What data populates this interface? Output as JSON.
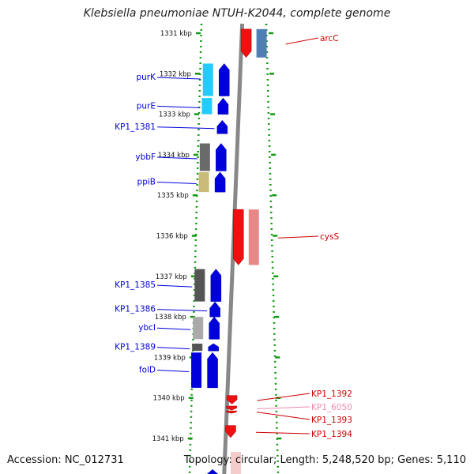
{
  "title": "Klebsiella pneumoniae NTUH-K2044, complete genome",
  "footer": {
    "accession": "Accession: NC_012731",
    "summary": "Topology: circular; Length: 5,248,520 bp; Genes: 5,110"
  },
  "colors": {
    "forward": "#0000dd",
    "reverse": "#ee1111",
    "reverse_faint": "#f08aaa",
    "scale": "#119911",
    "backbone": "#888888"
  },
  "ruler": [
    {
      "label": "1331 kbp",
      "pos": 1331
    },
    {
      "label": "1332 kbp",
      "pos": 1332
    },
    {
      "label": "1333 kbp",
      "pos": 1333
    },
    {
      "label": "1334 kbp",
      "pos": 1334
    },
    {
      "label": "1335 kbp",
      "pos": 1335
    },
    {
      "label": "1336 kbp",
      "pos": 1336
    },
    {
      "label": "1337 kbp",
      "pos": 1337
    },
    {
      "label": "1338 kbp",
      "pos": 1338
    },
    {
      "label": "1339 kbp",
      "pos": 1339
    },
    {
      "label": "1340 kbp",
      "pos": 1340
    },
    {
      "label": "1341 kbp",
      "pos": 1341
    }
  ],
  "genes_forward": [
    {
      "name": "purK",
      "start": 1331.75,
      "end": 1332.55,
      "cog": "#22ccff"
    },
    {
      "name": "purE",
      "start": 1332.6,
      "end": 1333.0,
      "cog": "#22ccff"
    },
    {
      "name": "KP1_1381",
      "start": 1333.15,
      "end": 1333.48,
      "cog": ""
    },
    {
      "name": "ybbF",
      "start": 1333.72,
      "end": 1334.4,
      "cog": "#6a6a6a"
    },
    {
      "name": "ppiB",
      "start": 1334.43,
      "end": 1334.92,
      "cog": "#c8bc78"
    },
    {
      "name": "KP1_1385",
      "start": 1336.82,
      "end": 1337.62,
      "cog": "#555555"
    },
    {
      "name": "KP1_1386",
      "start": 1337.63,
      "end": 1338.0,
      "cog": ""
    },
    {
      "name": "ybcI",
      "start": 1338.0,
      "end": 1338.55,
      "cog": "#aaaaaa"
    },
    {
      "name": "KP1_1389",
      "start": 1338.66,
      "end": 1338.84,
      "cog": "#555555"
    },
    {
      "name": "folD",
      "start": 1338.88,
      "end": 1339.75,
      "cog": "#0000dd"
    }
  ],
  "genes_reverse": [
    {
      "name": "arcC",
      "start": 1330.9,
      "end": 1331.6,
      "cog": "#4f7fb5"
    },
    {
      "name": "cysS",
      "start": 1335.35,
      "end": 1336.72,
      "cog": "#e88888"
    },
    {
      "name": "KP1_1392",
      "start": 1339.94,
      "end": 1340.15,
      "cog": ""
    },
    {
      "name": "KP1_6050",
      "start": 1340.2,
      "end": 1340.3,
      "cog": ""
    },
    {
      "name": "KP1_1393",
      "start": 1340.32,
      "end": 1340.34,
      "cog": ""
    },
    {
      "name": "KP1_1394",
      "start": 1340.68,
      "end": 1340.98,
      "cog": ""
    }
  ]
}
